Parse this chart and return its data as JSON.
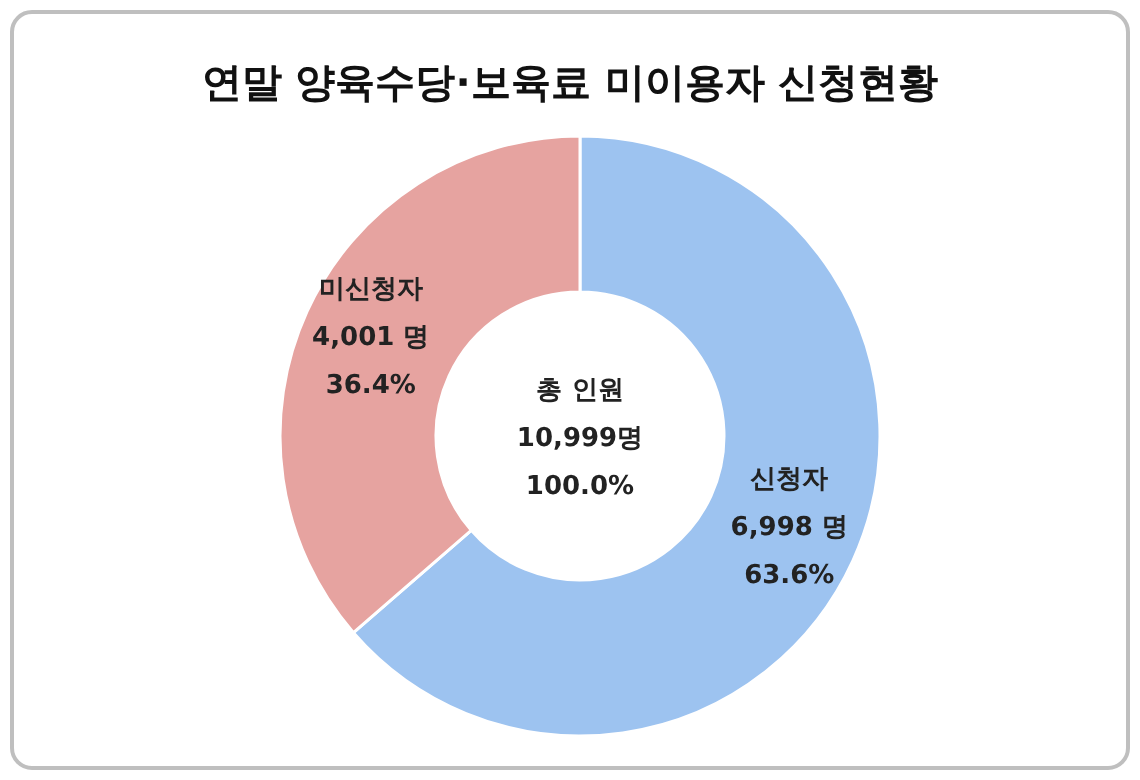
{
  "chart_data": {
    "type": "donut",
    "title": "연말 양육수당·보육료 미이용자 신청현황",
    "categories": [
      "신청자",
      "미신청자"
    ],
    "values": [
      6998,
      4001
    ],
    "colors": [
      "#9dc3f0",
      "#e6a3a0"
    ],
    "value_labels": [
      "6,998 명\n63.6%",
      "4,001 명\n36.4%"
    ],
    "annotations": [
      "총 인원",
      "10,999명",
      "100.0%"
    ],
    "legend": false
  }
}
